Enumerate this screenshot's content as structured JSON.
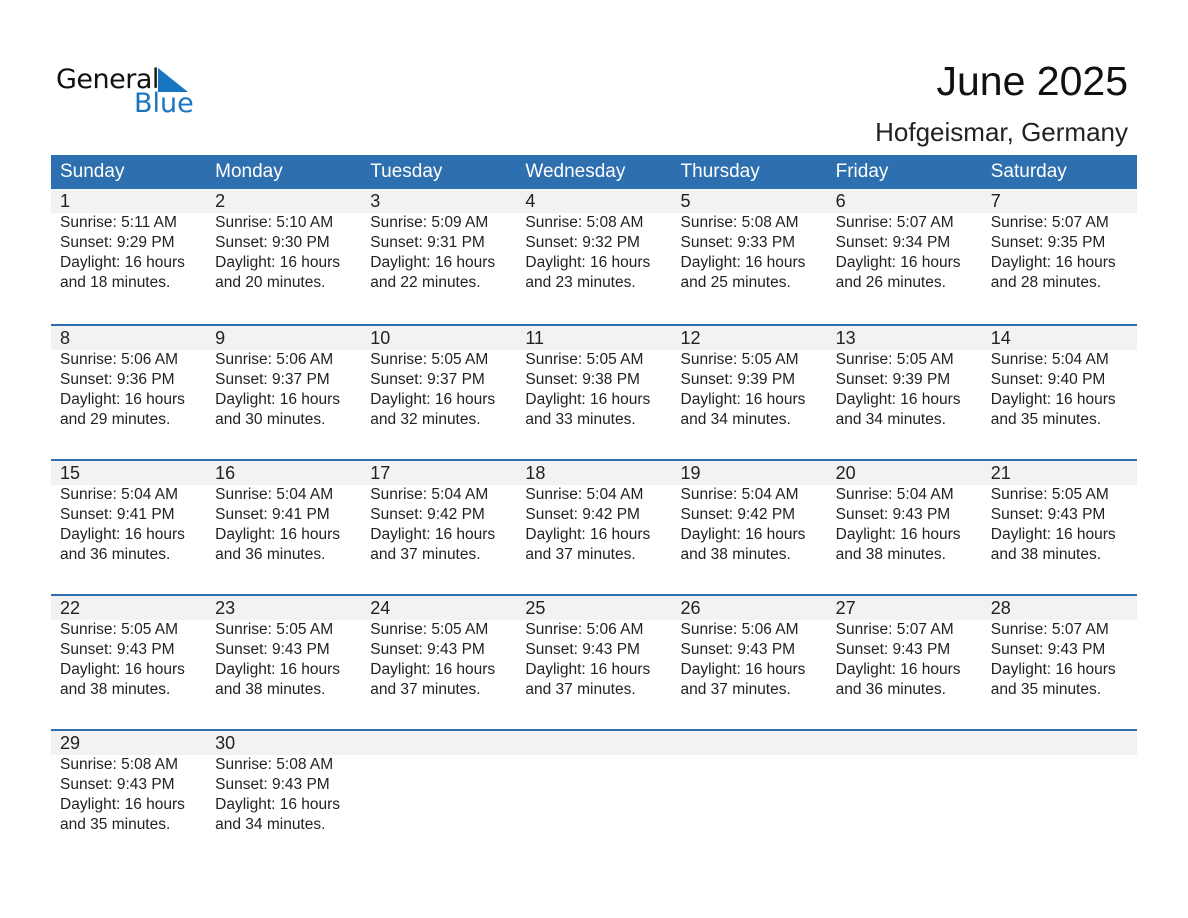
{
  "logo": {
    "text_general": "General",
    "text_blue": "Blue",
    "color": "#1a75c0"
  },
  "header": {
    "title": "June 2025",
    "location": "Hofgeismar, Germany"
  },
  "colors": {
    "header_bg": "#2e6fb0",
    "day_band": "#f2f2f2"
  },
  "weekdays": [
    "Sunday",
    "Monday",
    "Tuesday",
    "Wednesday",
    "Thursday",
    "Friday",
    "Saturday"
  ],
  "weeks": [
    [
      {
        "day": "1",
        "sunrise": "Sunrise: 5:11 AM",
        "sunset": "Sunset: 9:29 PM",
        "daylight": "Daylight: 16 hours",
        "minutes": "and 18 minutes."
      },
      {
        "day": "2",
        "sunrise": "Sunrise: 5:10 AM",
        "sunset": "Sunset: 9:30 PM",
        "daylight": "Daylight: 16 hours",
        "minutes": "and 20 minutes."
      },
      {
        "day": "3",
        "sunrise": "Sunrise: 5:09 AM",
        "sunset": "Sunset: 9:31 PM",
        "daylight": "Daylight: 16 hours",
        "minutes": "and 22 minutes."
      },
      {
        "day": "4",
        "sunrise": "Sunrise: 5:08 AM",
        "sunset": "Sunset: 9:32 PM",
        "daylight": "Daylight: 16 hours",
        "minutes": "and 23 minutes."
      },
      {
        "day": "5",
        "sunrise": "Sunrise: 5:08 AM",
        "sunset": "Sunset: 9:33 PM",
        "daylight": "Daylight: 16 hours",
        "minutes": "and 25 minutes."
      },
      {
        "day": "6",
        "sunrise": "Sunrise: 5:07 AM",
        "sunset": "Sunset: 9:34 PM",
        "daylight": "Daylight: 16 hours",
        "minutes": "and 26 minutes."
      },
      {
        "day": "7",
        "sunrise": "Sunrise: 5:07 AM",
        "sunset": "Sunset: 9:35 PM",
        "daylight": "Daylight: 16 hours",
        "minutes": "and 28 minutes."
      }
    ],
    [
      {
        "day": "8",
        "sunrise": "Sunrise: 5:06 AM",
        "sunset": "Sunset: 9:36 PM",
        "daylight": "Daylight: 16 hours",
        "minutes": "and 29 minutes."
      },
      {
        "day": "9",
        "sunrise": "Sunrise: 5:06 AM",
        "sunset": "Sunset: 9:37 PM",
        "daylight": "Daylight: 16 hours",
        "minutes": "and 30 minutes."
      },
      {
        "day": "10",
        "sunrise": "Sunrise: 5:05 AM",
        "sunset": "Sunset: 9:37 PM",
        "daylight": "Daylight: 16 hours",
        "minutes": "and 32 minutes."
      },
      {
        "day": "11",
        "sunrise": "Sunrise: 5:05 AM",
        "sunset": "Sunset: 9:38 PM",
        "daylight": "Daylight: 16 hours",
        "minutes": "and 33 minutes."
      },
      {
        "day": "12",
        "sunrise": "Sunrise: 5:05 AM",
        "sunset": "Sunset: 9:39 PM",
        "daylight": "Daylight: 16 hours",
        "minutes": "and 34 minutes."
      },
      {
        "day": "13",
        "sunrise": "Sunrise: 5:05 AM",
        "sunset": "Sunset: 9:39 PM",
        "daylight": "Daylight: 16 hours",
        "minutes": "and 34 minutes."
      },
      {
        "day": "14",
        "sunrise": "Sunrise: 5:04 AM",
        "sunset": "Sunset: 9:40 PM",
        "daylight": "Daylight: 16 hours",
        "minutes": "and 35 minutes."
      }
    ],
    [
      {
        "day": "15",
        "sunrise": "Sunrise: 5:04 AM",
        "sunset": "Sunset: 9:41 PM",
        "daylight": "Daylight: 16 hours",
        "minutes": "and 36 minutes."
      },
      {
        "day": "16",
        "sunrise": "Sunrise: 5:04 AM",
        "sunset": "Sunset: 9:41 PM",
        "daylight": "Daylight: 16 hours",
        "minutes": "and 36 minutes."
      },
      {
        "day": "17",
        "sunrise": "Sunrise: 5:04 AM",
        "sunset": "Sunset: 9:42 PM",
        "daylight": "Daylight: 16 hours",
        "minutes": "and 37 minutes."
      },
      {
        "day": "18",
        "sunrise": "Sunrise: 5:04 AM",
        "sunset": "Sunset: 9:42 PM",
        "daylight": "Daylight: 16 hours",
        "minutes": "and 37 minutes."
      },
      {
        "day": "19",
        "sunrise": "Sunrise: 5:04 AM",
        "sunset": "Sunset: 9:42 PM",
        "daylight": "Daylight: 16 hours",
        "minutes": "and 38 minutes."
      },
      {
        "day": "20",
        "sunrise": "Sunrise: 5:04 AM",
        "sunset": "Sunset: 9:43 PM",
        "daylight": "Daylight: 16 hours",
        "minutes": "and 38 minutes."
      },
      {
        "day": "21",
        "sunrise": "Sunrise: 5:05 AM",
        "sunset": "Sunset: 9:43 PM",
        "daylight": "Daylight: 16 hours",
        "minutes": "and 38 minutes."
      }
    ],
    [
      {
        "day": "22",
        "sunrise": "Sunrise: 5:05 AM",
        "sunset": "Sunset: 9:43 PM",
        "daylight": "Daylight: 16 hours",
        "minutes": "and 38 minutes."
      },
      {
        "day": "23",
        "sunrise": "Sunrise: 5:05 AM",
        "sunset": "Sunset: 9:43 PM",
        "daylight": "Daylight: 16 hours",
        "minutes": "and 38 minutes."
      },
      {
        "day": "24",
        "sunrise": "Sunrise: 5:05 AM",
        "sunset": "Sunset: 9:43 PM",
        "daylight": "Daylight: 16 hours",
        "minutes": "and 37 minutes."
      },
      {
        "day": "25",
        "sunrise": "Sunrise: 5:06 AM",
        "sunset": "Sunset: 9:43 PM",
        "daylight": "Daylight: 16 hours",
        "minutes": "and 37 minutes."
      },
      {
        "day": "26",
        "sunrise": "Sunrise: 5:06 AM",
        "sunset": "Sunset: 9:43 PM",
        "daylight": "Daylight: 16 hours",
        "minutes": "and 37 minutes."
      },
      {
        "day": "27",
        "sunrise": "Sunrise: 5:07 AM",
        "sunset": "Sunset: 9:43 PM",
        "daylight": "Daylight: 16 hours",
        "minutes": "and 36 minutes."
      },
      {
        "day": "28",
        "sunrise": "Sunrise: 5:07 AM",
        "sunset": "Sunset: 9:43 PM",
        "daylight": "Daylight: 16 hours",
        "minutes": "and 35 minutes."
      }
    ],
    [
      {
        "day": "29",
        "sunrise": "Sunrise: 5:08 AM",
        "sunset": "Sunset: 9:43 PM",
        "daylight": "Daylight: 16 hours",
        "minutes": "and 35 minutes."
      },
      {
        "day": "30",
        "sunrise": "Sunrise: 5:08 AM",
        "sunset": "Sunset: 9:43 PM",
        "daylight": "Daylight: 16 hours",
        "minutes": "and 34 minutes."
      }
    ]
  ]
}
